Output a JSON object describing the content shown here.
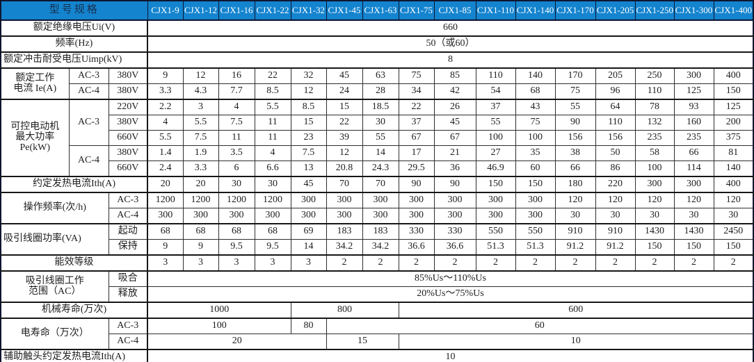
{
  "colors": {
    "header_bg": "#1484cf",
    "header_text": "#ffffff",
    "corner_text": "#18304f",
    "border_dark": "#0f1530",
    "border_inner": "#2d2d2d",
    "cell_text": "#1e1e1e"
  },
  "table": {
    "corner_label": "型号规格",
    "models": [
      "CJX1-9",
      "CJX1-12",
      "CJX1-16",
      "CJX1-22",
      "CJX1-32",
      "CJX1-45",
      "CJX1-63",
      "CJX1-75",
      "CJX1-85",
      "CJX1-110",
      "CJX1-140",
      "CJX1-170",
      "CJX1-205",
      "CJX1-250",
      "CJX1-300",
      "CJX1-400"
    ],
    "rows": [
      {
        "name": "rated-insulation-voltage",
        "g": 0,
        "cells": [
          {
            "t": "额定绝缘电压Ui(V)",
            "c": 3,
            "cls": "lbl end"
          },
          {
            "t": "660",
            "c": 16,
            "cls": "val"
          }
        ]
      },
      {
        "name": "frequency",
        "g": 1,
        "cells": [
          {
            "t": "频率(Hz)",
            "c": 3,
            "cls": "lbl end"
          },
          {
            "t": "50（或60）",
            "c": 16,
            "cls": "val"
          }
        ]
      },
      {
        "name": "rated-impulse-withstand-voltage",
        "g": 1,
        "cells": [
          {
            "t": "额定冲击耐受电压Uimp(kV)",
            "c": 3,
            "cls": "lbl end left"
          },
          {
            "t": "8",
            "c": 16,
            "cls": "val"
          }
        ]
      },
      {
        "name": "rated-working-current-ac3",
        "g": 1,
        "cells": [
          {
            "t": "额定工作\n电流 Ie(A)",
            "r": 2,
            "cls": "lbl"
          },
          {
            "t": "AC-3",
            "cls": "sub"
          },
          {
            "t": "380V",
            "cls": "sub end"
          },
          {
            "vs": [
              "9",
              "12",
              "16",
              "22",
              "32",
              "45",
              "63",
              "75",
              "85",
              "110",
              "140",
              "170",
              "205",
              "250",
              "300",
              "400"
            ]
          }
        ]
      },
      {
        "name": "rated-working-current-ac4",
        "g": 0,
        "cells": [
          {
            "t": "AC-4",
            "cls": "sub"
          },
          {
            "t": "380V",
            "cls": "sub end"
          },
          {
            "vs": [
              "3.3",
              "4.3",
              "7.7",
              "8.5",
              "12",
              "24",
              "28",
              "34",
              "42",
              "54",
              "68",
              "75",
              "96",
              "110",
              "125",
              "150"
            ]
          }
        ]
      },
      {
        "name": "motor-max-power-ac3-220v",
        "g": 1,
        "cells": [
          {
            "t": "可控电动机\n最大功率\nPe(kW)",
            "r": 5,
            "cls": "lbl"
          },
          {
            "t": "AC-3",
            "r": 3,
            "cls": "sub"
          },
          {
            "t": "220V",
            "cls": "sub end"
          },
          {
            "vs": [
              "2.2",
              "3",
              "4",
              "5.5",
              "8.5",
              "15",
              "18.5",
              "22",
              "26",
              "37",
              "43",
              "55",
              "64",
              "78",
              "93",
              "125"
            ]
          }
        ]
      },
      {
        "name": "motor-max-power-ac3-380v",
        "g": 0,
        "cells": [
          {
            "t": "380V",
            "cls": "sub end"
          },
          {
            "vs": [
              "4",
              "5.5",
              "7.5",
              "11",
              "15",
              "22",
              "30",
              "37",
              "45",
              "55",
              "75",
              "90",
              "110",
              "132",
              "160",
              "200"
            ]
          }
        ]
      },
      {
        "name": "motor-max-power-ac3-660v",
        "g": 0,
        "cells": [
          {
            "t": "660V",
            "cls": "sub end"
          },
          {
            "vs": [
              "5.5",
              "7.5",
              "11",
              "11",
              "23",
              "39",
              "55",
              "67",
              "67",
              "100",
              "100",
              "156",
              "156",
              "235",
              "235",
              "375"
            ]
          }
        ]
      },
      {
        "name": "motor-max-power-ac4-380v",
        "g": 0,
        "cells": [
          {
            "t": "AC-4",
            "r": 2,
            "cls": "sub"
          },
          {
            "t": "380V",
            "cls": "sub end"
          },
          {
            "vs": [
              "1.4",
              "1.9",
              "3.5",
              "4",
              "7.5",
              "12",
              "14",
              "17",
              "21",
              "27",
              "35",
              "38",
              "50",
              "58",
              "66",
              "81"
            ]
          }
        ]
      },
      {
        "name": "motor-max-power-ac4-660v",
        "g": 0,
        "cells": [
          {
            "t": "660V",
            "cls": "sub end"
          },
          {
            "vs": [
              "2.4",
              "3.3",
              "6",
              "6.6",
              "13",
              "20.8",
              "24.3",
              "29.5",
              "36",
              "46.9",
              "60",
              "66",
              "86",
              "100",
              "114",
              "140"
            ]
          }
        ]
      },
      {
        "name": "conventional-thermal-current",
        "g": 1,
        "cells": [
          {
            "t": "约定发热电流Ith(A)",
            "c": 3,
            "cls": "lbl end"
          },
          {
            "vs": [
              "20",
              "20",
              "30",
              "30",
              "45",
              "70",
              "70",
              "90",
              "90",
              "150",
              "150",
              "180",
              "220",
              "300",
              "300",
              "400"
            ]
          }
        ]
      },
      {
        "name": "operating-frequency-ac3",
        "g": 1,
        "cells": [
          {
            "t": "操作频率(次/h)",
            "c": 2,
            "r": 2,
            "cls": "lbl"
          },
          {
            "t": "AC-3",
            "cls": "sub end"
          },
          {
            "vs": [
              "1200",
              "1200",
              "1200",
              "1200",
              "300",
              "300",
              "300",
              "300",
              "300",
              "300",
              "300",
              "120",
              "120",
              "120",
              "120",
              "120"
            ]
          }
        ]
      },
      {
        "name": "operating-frequency-ac4",
        "g": 0,
        "cells": [
          {
            "t": "AC-4",
            "cls": "sub end"
          },
          {
            "vs": [
              "300",
              "300",
              "300",
              "300",
              "300",
              "300",
              "300",
              "300",
              "300",
              "300",
              "300",
              "30",
              "30",
              "30",
              "30",
              "30"
            ]
          }
        ]
      },
      {
        "name": "coil-power-starting",
        "g": 1,
        "cells": [
          {
            "t": "吸引线圈功率(VA)",
            "c": 2,
            "r": 2,
            "cls": "lbl left"
          },
          {
            "t": "起动",
            "cls": "sub end"
          },
          {
            "vs": [
              "68",
              "68",
              "68",
              "68",
              "69",
              "183",
              "183",
              "330",
              "330",
              "550",
              "550",
              "910",
              "910",
              "1430",
              "1430",
              "2450"
            ]
          }
        ]
      },
      {
        "name": "coil-power-holding",
        "g": 0,
        "cells": [
          {
            "t": "保持",
            "cls": "sub end"
          },
          {
            "vs": [
              "9",
              "9",
              "9.5",
              "9.5",
              "14",
              "34.2",
              "34.2",
              "36.6",
              "36.6",
              "51.3",
              "51.3",
              "91.2",
              "91.2",
              "150",
              "150",
              "150"
            ]
          }
        ]
      },
      {
        "name": "energy-efficiency-grade",
        "g": 1,
        "cells": [
          {
            "t": "能效等级",
            "c": 3,
            "cls": "lbl end"
          },
          {
            "vs": [
              "3",
              "3",
              "3",
              "3",
              "3",
              "2",
              "2",
              "2",
              "2",
              "2",
              "2",
              "2",
              "2",
              "2",
              "2",
              "2"
            ]
          }
        ]
      },
      {
        "name": "coil-working-range-pickup",
        "g": 1,
        "cells": [
          {
            "t": "吸引线圈工作\n范围（AC）",
            "c": 2,
            "r": 2,
            "cls": "lbl"
          },
          {
            "t": "吸合",
            "cls": "sub end"
          },
          {
            "t": "85%Us～110%Us",
            "c": 16,
            "cls": "val"
          }
        ]
      },
      {
        "name": "coil-working-range-release",
        "g": 0,
        "cells": [
          {
            "t": "释放",
            "cls": "sub end"
          },
          {
            "t": "20%Us～75%Us",
            "c": 16,
            "cls": "val"
          }
        ]
      },
      {
        "name": "mechanical-life",
        "g": 1,
        "cells": [
          {
            "t": "机械寿命(万次)",
            "c": 3,
            "cls": "lbl end"
          },
          {
            "t": "1000",
            "c": 4,
            "cls": "val"
          },
          {
            "t": "800",
            "c": 3,
            "cls": "val"
          },
          {
            "t": "600",
            "c": 9,
            "cls": "val"
          }
        ]
      },
      {
        "name": "electrical-life-ac3",
        "g": 1,
        "cells": [
          {
            "t": "电寿命（万次）",
            "c": 2,
            "r": 2,
            "cls": "lbl"
          },
          {
            "t": "AC-3",
            "cls": "sub end"
          },
          {
            "t": "100",
            "c": 4,
            "cls": "val"
          },
          {
            "t": "80",
            "c": 1,
            "cls": "val"
          },
          {
            "t": "60",
            "c": 11,
            "cls": "val"
          }
        ]
      },
      {
        "name": "electrical-life-ac4",
        "g": 0,
        "cells": [
          {
            "t": "AC-4",
            "cls": "sub end"
          },
          {
            "t": "20",
            "c": 5,
            "cls": "val"
          },
          {
            "t": "15",
            "c": 2,
            "cls": "val"
          },
          {
            "t": "10",
            "c": 9,
            "cls": "val"
          }
        ]
      },
      {
        "name": "auxiliary-contact-thermal-current",
        "g": 1,
        "cells": [
          {
            "t": "辅助触头约定发热电流Ith(A)",
            "c": 3,
            "cls": "lbl end left"
          },
          {
            "t": "10",
            "c": 16,
            "cls": "val"
          }
        ]
      },
      {
        "name": "cut-off-row",
        "g": 1,
        "partial": true,
        "cells": [
          {
            "t": "",
            "c": 2,
            "cls": "lbl"
          },
          {
            "t": "",
            "cls": "sub end"
          },
          {
            "t": "",
            "c": 16,
            "cls": "val"
          }
        ]
      }
    ]
  }
}
